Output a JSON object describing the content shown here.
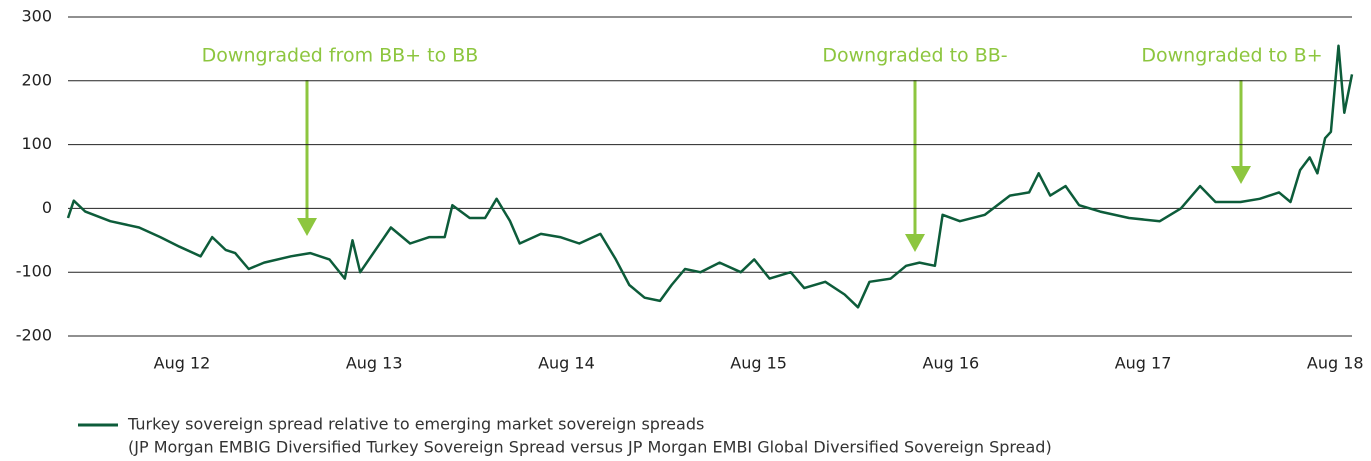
{
  "chart_data": {
    "type": "line",
    "x": [
      2011.99,
      2012.02,
      2012.08,
      2012.21,
      2012.36,
      2012.47,
      2012.57,
      2012.68,
      2012.74,
      2012.81,
      2012.86,
      2012.93,
      2013.01,
      2013.15,
      2013.25,
      2013.35,
      2013.43,
      2013.47,
      2013.51,
      2013.67,
      2013.77,
      2013.87,
      2013.95,
      2013.99,
      2014.08,
      2014.16,
      2014.22,
      2014.29,
      2014.34,
      2014.45,
      2014.55,
      2014.65,
      2014.76,
      2014.84,
      2014.91,
      2014.99,
      2015.07,
      2015.13,
      2015.2,
      2015.28,
      2015.38,
      2015.49,
      2015.56,
      2015.64,
      2015.75,
      2015.82,
      2015.93,
      2016.03,
      2016.1,
      2016.16,
      2016.27,
      2016.35,
      2016.42,
      2016.5,
      2016.54,
      2016.63,
      2016.76,
      2016.89,
      2016.99,
      2017.04,
      2017.1,
      2017.18,
      2017.25,
      2017.36,
      2017.51,
      2017.67,
      2017.78,
      2017.88,
      2017.96,
      2018.09,
      2018.19,
      2018.29,
      2018.35,
      2018.4,
      2018.45,
      2018.49,
      2018.53,
      2018.56,
      2018.6,
      2018.63,
      2018.67
    ],
    "series": [
      {
        "name": "Turkey sovereign spread relative to emerging market sovereign spreads",
        "color": "#0d5c3a",
        "values": [
          -15,
          12,
          -5,
          -20,
          -30,
          -45,
          -60,
          -75,
          -45,
          -65,
          -70,
          -95,
          -85,
          -75,
          -70,
          -80,
          -110,
          -50,
          -100,
          -30,
          -55,
          -45,
          -45,
          5,
          -15,
          -15,
          15,
          -20,
          -55,
          -40,
          -45,
          -55,
          -40,
          -80,
          -120,
          -140,
          -145,
          -120,
          -95,
          -100,
          -85,
          -100,
          -80,
          -110,
          -100,
          -125,
          -115,
          -135,
          -155,
          -115,
          -110,
          -90,
          -85,
          -90,
          -10,
          -20,
          -10,
          20,
          25,
          55,
          20,
          35,
          5,
          -5,
          -15,
          -20,
          0,
          35,
          10,
          10,
          15,
          25,
          10,
          60,
          80,
          55,
          110,
          120,
          255,
          150,
          210
        ]
      }
    ],
    "note": "(JP Morgan EMBIG Diversified Turkey Sovereign Spread versus JP Morgan EMBI Global Diversified Sovereign Spread)",
    "annotations": [
      "Downgraded from BB+ to BB",
      "Downgraded to BB-",
      "Downgraded to B+"
    ],
    "xlim": [
      2011.99,
      2018.67
    ],
    "xticks": [
      {
        "value": 2012.583,
        "label": "Aug 12"
      },
      {
        "value": 2013.583,
        "label": "Aug 13"
      },
      {
        "value": 2014.583,
        "label": "Aug 14"
      },
      {
        "value": 2015.583,
        "label": "Aug 15"
      },
      {
        "value": 2016.583,
        "label": "Aug 16"
      },
      {
        "value": 2017.583,
        "label": "Aug 17"
      },
      {
        "value": 2018.583,
        "label": "Aug 18"
      }
    ],
    "ylim": [
      -200,
      300
    ],
    "yticks": [
      -200,
      -100,
      0,
      100,
      200,
      300
    ],
    "grid": true
  }
}
